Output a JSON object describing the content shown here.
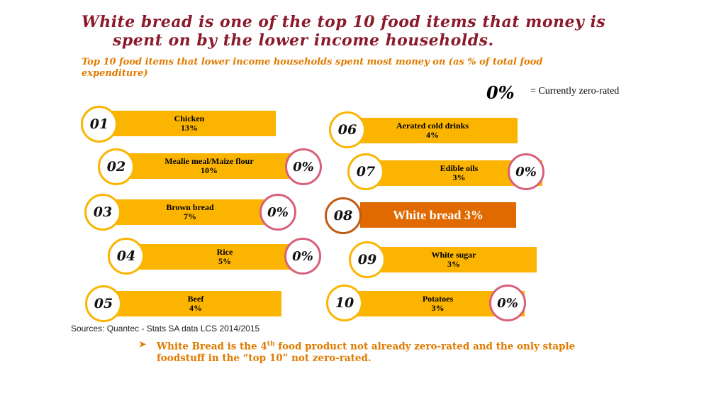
{
  "title_line1": "White bread is one of the top 10 food items that money is",
  "title_line2": "spent on by the lower income households.",
  "subtitle": "Top 10 food items that lower income households spent most money on (as % of total food expenditure)",
  "legend": {
    "mark": "0%",
    "text": "= Currently zero-rated"
  },
  "chart_data": {
    "type": "table",
    "title": "Top 10 food items that lower income households spent most money on (as % of total food expenditure)",
    "zero_rated_marker": "0%",
    "items": [
      {
        "rank": "01",
        "name": "Chicken",
        "value": "13%",
        "zero_rated": false,
        "highlight": false
      },
      {
        "rank": "02",
        "name": "Mealie meal/Maize flour",
        "value": "10%",
        "zero_rated": true,
        "highlight": false
      },
      {
        "rank": "03",
        "name": "Brown bread",
        "value": "7%",
        "zero_rated": true,
        "highlight": false
      },
      {
        "rank": "04",
        "name": "Rice",
        "value": "5%",
        "zero_rated": true,
        "highlight": false
      },
      {
        "rank": "05",
        "name": "Beef",
        "value": "4%",
        "zero_rated": false,
        "highlight": false
      },
      {
        "rank": "06",
        "name": "Aerated cold drinks",
        "value": "4%",
        "zero_rated": false,
        "highlight": false
      },
      {
        "rank": "07",
        "name": "Edible oils",
        "value": "3%",
        "zero_rated": true,
        "highlight": false
      },
      {
        "rank": "08",
        "name": "White bread",
        "value": "3%",
        "zero_rated": false,
        "highlight": true,
        "label": "White bread 3%"
      },
      {
        "rank": "09",
        "name": "White sugar",
        "value": "3%",
        "zero_rated": false,
        "highlight": false
      },
      {
        "rank": "10",
        "name": "Potatoes",
        "value": "3%",
        "zero_rated": true,
        "highlight": false
      }
    ],
    "colors": {
      "bar": "#fbb400",
      "highlight_bar": "#e06a00",
      "zero_rated_ring": "#d8607a",
      "title": "#8b1a2b",
      "subtitle": "#e07b00"
    }
  },
  "source": "Sources: Quantec - Stats SA data LCS 2014/2015",
  "note": {
    "part1": "White Bread is the 4",
    "sup": "th",
    "part2": " food product not already zero-rated and the only staple foodstuff in the “top 10” not zero-rated."
  }
}
